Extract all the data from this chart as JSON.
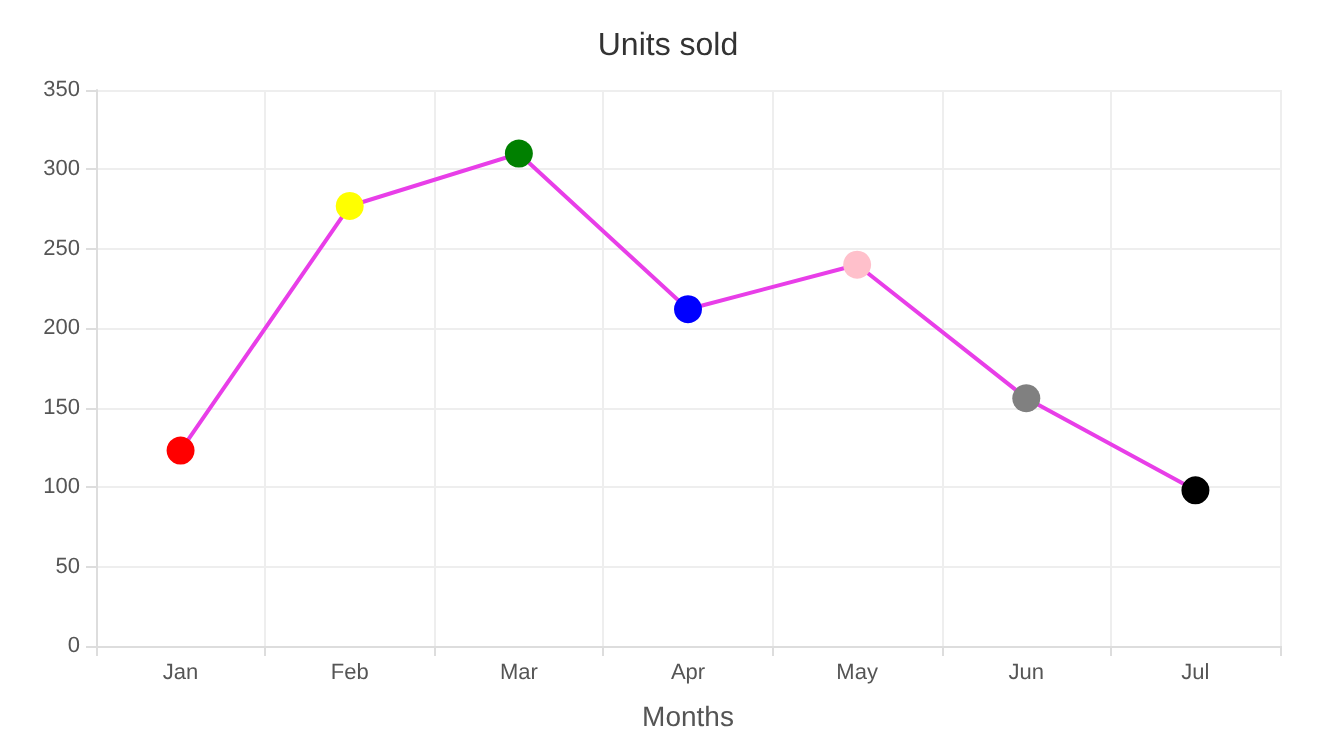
{
  "chart_data": {
    "type": "line",
    "title": "Units sold",
    "xlabel": "Months",
    "categories": [
      "Jan",
      "Feb",
      "Mar",
      "Apr",
      "May",
      "Jun",
      "Jul"
    ],
    "series": [
      {
        "color": "#e83ee8",
        "values": [
          123,
          277,
          310,
          212,
          240,
          156,
          98
        ],
        "colors": [
          "#ff0000",
          "#ffff00",
          "#008000",
          "#0000ff",
          "#ffc0cb",
          "#808080",
          "#000000"
        ]
      }
    ],
    "ylim": [
      0,
      350
    ],
    "yticks": [
      0,
      50,
      100,
      150,
      200,
      250,
      300,
      350
    ],
    "grid": true,
    "marker": "circle"
  }
}
